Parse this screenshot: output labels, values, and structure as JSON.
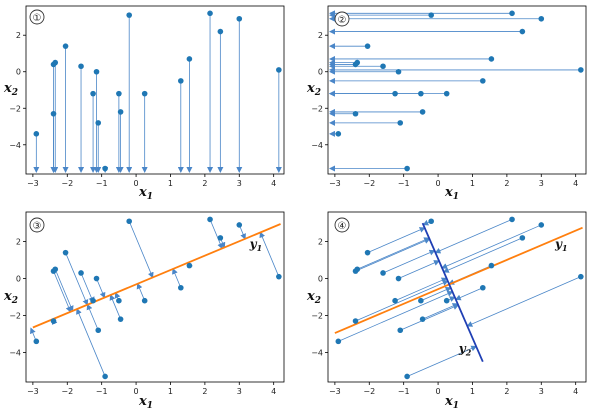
{
  "chart_data": [
    {
      "panel": "1",
      "type": "scatter",
      "xlabel": {
        "base": "x",
        "sub": "1"
      },
      "ylabel": {
        "base": "x",
        "sub": "2"
      },
      "xlim": [
        -3.2,
        4.3
      ],
      "ylim": [
        -5.6,
        3.6
      ],
      "xticks": [
        -3,
        -2,
        -1,
        0,
        1,
        2,
        3,
        4
      ],
      "yticks": [
        -4,
        -2,
        0,
        2
      ],
      "projection": "x-axis",
      "points": [
        [
          -2.9,
          -3.4
        ],
        [
          -2.4,
          0.4
        ],
        [
          -2.35,
          0.5
        ],
        [
          -2.4,
          -2.3
        ],
        [
          -2.05,
          1.4
        ],
        [
          -1.6,
          0.3
        ],
        [
          -1.25,
          -1.2
        ],
        [
          -1.15,
          0.0
        ],
        [
          -1.1,
          -2.8
        ],
        [
          -0.9,
          -5.3
        ],
        [
          -0.5,
          -1.2
        ],
        [
          -0.45,
          -2.2
        ],
        [
          -0.2,
          3.1
        ],
        [
          0.25,
          -1.2
        ],
        [
          1.3,
          -0.5
        ],
        [
          1.55,
          0.7
        ],
        [
          2.15,
          3.2
        ],
        [
          2.45,
          2.2
        ],
        [
          3.0,
          2.9
        ],
        [
          4.15,
          0.1
        ]
      ],
      "lines": [],
      "labels": []
    },
    {
      "panel": "2",
      "type": "scatter",
      "xlabel": {
        "base": "x",
        "sub": "1"
      },
      "ylabel": {
        "base": "x",
        "sub": "2"
      },
      "xlim": [
        -3.2,
        4.3
      ],
      "ylim": [
        -5.6,
        3.6
      ],
      "xticks": [
        -3,
        -2,
        -1,
        0,
        1,
        2,
        3,
        4
      ],
      "yticks": [
        -4,
        -2,
        0,
        2
      ],
      "projection": "y-axis",
      "points": [
        [
          -2.9,
          -3.4
        ],
        [
          -2.4,
          0.4
        ],
        [
          -2.35,
          0.5
        ],
        [
          -2.4,
          -2.3
        ],
        [
          -2.05,
          1.4
        ],
        [
          -1.6,
          0.3
        ],
        [
          -1.25,
          -1.2
        ],
        [
          -1.15,
          0.0
        ],
        [
          -1.1,
          -2.8
        ],
        [
          -0.9,
          -5.3
        ],
        [
          -0.5,
          -1.2
        ],
        [
          -0.45,
          -2.2
        ],
        [
          -0.2,
          3.1
        ],
        [
          0.25,
          -1.2
        ],
        [
          1.3,
          -0.5
        ],
        [
          1.55,
          0.7
        ],
        [
          2.15,
          3.2
        ],
        [
          2.45,
          2.2
        ],
        [
          3.0,
          2.9
        ],
        [
          4.15,
          0.1
        ]
      ],
      "lines": [],
      "labels": []
    },
    {
      "panel": "3",
      "type": "scatter",
      "xlabel": {
        "base": "x",
        "sub": "1"
      },
      "ylabel": {
        "base": "x",
        "sub": "2"
      },
      "xlim": [
        -3.2,
        4.3
      ],
      "ylim": [
        -5.6,
        3.6
      ],
      "xticks": [
        -3,
        -2,
        -1,
        0,
        1,
        2,
        3,
        4
      ],
      "yticks": [
        -4,
        -2,
        0,
        2
      ],
      "projection": "line",
      "points": [
        [
          -2.9,
          -3.4
        ],
        [
          -2.4,
          0.4
        ],
        [
          -2.35,
          0.5
        ],
        [
          -2.4,
          -2.3
        ],
        [
          -2.05,
          1.4
        ],
        [
          -1.6,
          0.3
        ],
        [
          -1.25,
          -1.2
        ],
        [
          -1.15,
          0.0
        ],
        [
          -1.1,
          -2.8
        ],
        [
          -0.9,
          -5.3
        ],
        [
          -0.5,
          -1.2
        ],
        [
          -0.45,
          -2.2
        ],
        [
          -0.2,
          3.1
        ],
        [
          0.25,
          -1.2
        ],
        [
          1.3,
          -0.5
        ],
        [
          1.55,
          0.7
        ],
        [
          2.15,
          3.2
        ],
        [
          2.45,
          2.2
        ],
        [
          3.0,
          2.9
        ],
        [
          4.15,
          0.1
        ]
      ],
      "lines": [
        {
          "name": "y1",
          "from": [
            -3.0,
            -2.65
          ],
          "to": [
            4.2,
            2.95
          ],
          "color": "#ff7f0e"
        }
      ],
      "labels": [
        {
          "base": "y",
          "sub": "1",
          "at": [
            3.3,
            1.65
          ]
        }
      ]
    },
    {
      "panel": "4",
      "type": "scatter",
      "xlabel": {
        "base": "x",
        "sub": "1"
      },
      "ylabel": {
        "base": "x",
        "sub": "2"
      },
      "xlim": [
        -3.2,
        4.3
      ],
      "ylim": [
        -5.6,
        3.6
      ],
      "xticks": [
        -3,
        -2,
        -1,
        0,
        1,
        2,
        3,
        4
      ],
      "yticks": [
        -4,
        -2,
        0,
        2
      ],
      "projection": "line2",
      "points": [
        [
          -2.9,
          -3.4
        ],
        [
          -2.4,
          0.4
        ],
        [
          -2.35,
          0.5
        ],
        [
          -2.4,
          -2.3
        ],
        [
          -2.05,
          1.4
        ],
        [
          -1.6,
          0.3
        ],
        [
          -1.25,
          -1.2
        ],
        [
          -1.15,
          0.0
        ],
        [
          -1.1,
          -2.8
        ],
        [
          -0.9,
          -5.3
        ],
        [
          -0.5,
          -1.2
        ],
        [
          -0.45,
          -2.2
        ],
        [
          -0.2,
          3.1
        ],
        [
          0.25,
          -1.2
        ],
        [
          1.3,
          -0.5
        ],
        [
          1.55,
          0.7
        ],
        [
          2.15,
          3.2
        ],
        [
          2.45,
          2.2
        ],
        [
          3.0,
          2.9
        ],
        [
          4.15,
          0.1
        ]
      ],
      "lines": [
        {
          "name": "y1",
          "from": [
            -3.0,
            -2.95
          ],
          "to": [
            4.2,
            2.75
          ],
          "color": "#ff7f0e"
        },
        {
          "name": "y2",
          "from": [
            -0.45,
            3.0
          ],
          "to": [
            1.3,
            -4.5
          ],
          "color": "#1f3fb4"
        }
      ],
      "labels": [
        {
          "base": "y",
          "sub": "1",
          "at": [
            3.4,
            1.65
          ]
        },
        {
          "base": "y",
          "sub": "2",
          "at": [
            0.6,
            -4.0
          ]
        }
      ]
    }
  ],
  "colors": {
    "points": "#1f77b4",
    "arrows": "#4a86c8",
    "y1": "#ff7f0e",
    "y2": "#1f3fb4"
  },
  "badges": [
    "①",
    "②",
    "③",
    "④"
  ]
}
